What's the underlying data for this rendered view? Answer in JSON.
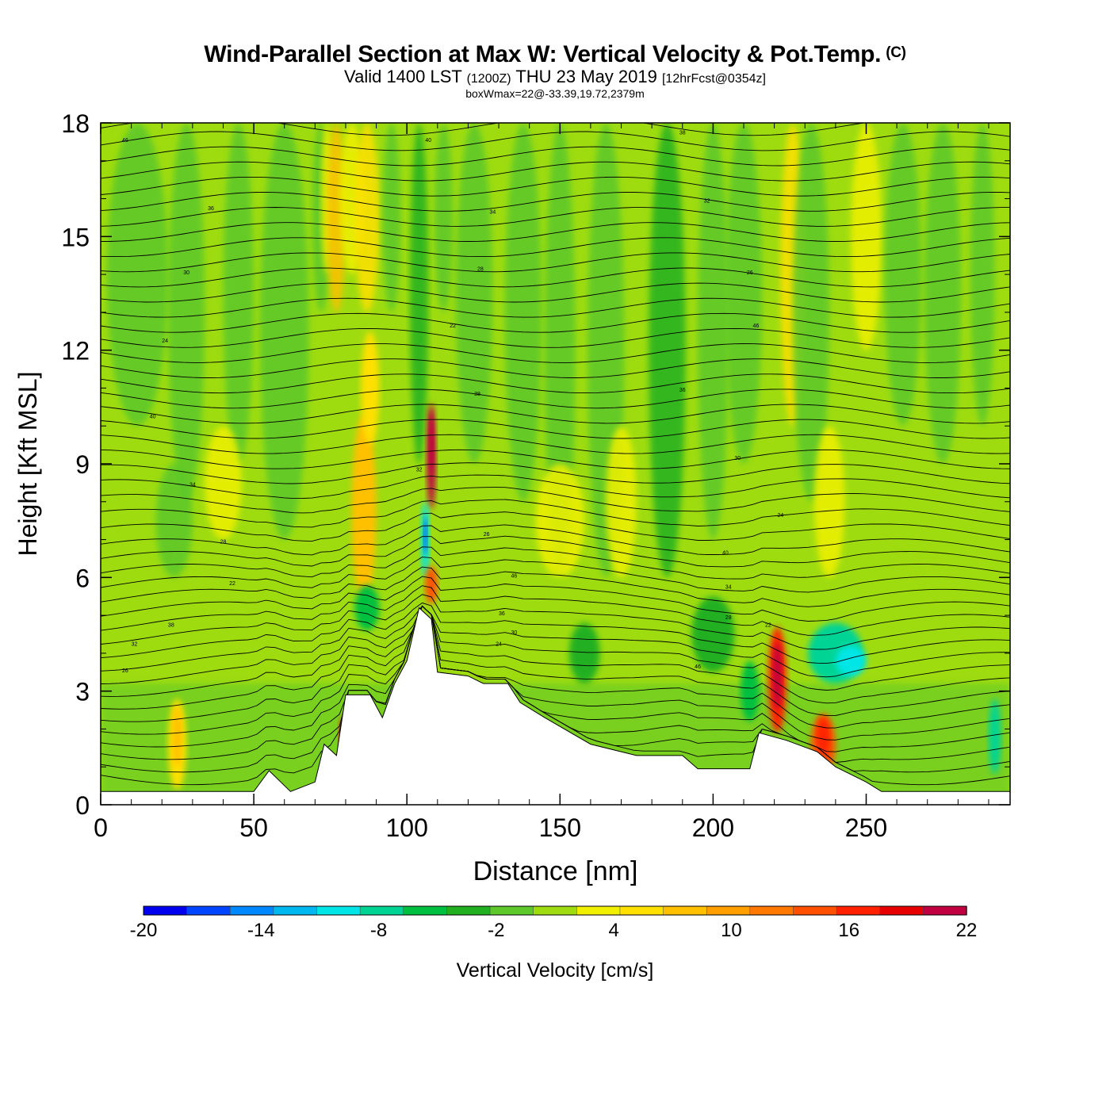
{
  "titles": {
    "main": "Wind-Parallel Section at Max W: Vertical Velocity & Pot.Temp.",
    "copyright": "(C)",
    "valid_prefix": "Valid 1400 LST",
    "valid_z": "(1200Z)",
    "valid_date": "THU 23 May 2019",
    "forecast": "[12hrFcst@0354z]",
    "boxwmax": "boxWmax=22@-33.39,19.72,2379m"
  },
  "chart_data": {
    "type": "heatmap",
    "xlabel": "Distance [nm]",
    "ylabel": "Height [Kft MSL]",
    "xlim": [
      0,
      297
    ],
    "ylim": [
      0,
      18
    ],
    "x_ticks": [
      "0",
      "50",
      "100",
      "150",
      "200",
      "250"
    ],
    "x_tick_values": [
      0,
      50,
      100,
      150,
      200,
      250
    ],
    "y_ticks": [
      "0",
      "3",
      "6",
      "9",
      "12",
      "15",
      "18"
    ],
    "y_tick_values": [
      0,
      3,
      6,
      9,
      12,
      15,
      18
    ],
    "colorbar": {
      "label": "Vertical Velocity [cm/s]",
      "min": -20,
      "max": 22,
      "step": 2,
      "tick_labels": [
        "-20",
        "-14",
        "-8",
        "-2",
        "4",
        "10",
        "16",
        "22"
      ],
      "tick_values": [
        -20,
        -14,
        -8,
        -2,
        4,
        10,
        16,
        22
      ],
      "colors": [
        "#0000ee",
        "#0044ff",
        "#0088ff",
        "#00b8f0",
        "#00e6e6",
        "#00d494",
        "#00c040",
        "#20b020",
        "#5cc82a",
        "#9edc10",
        "#f0f000",
        "#ffe000",
        "#ffc000",
        "#ffa000",
        "#ff7800",
        "#ff5000",
        "#ff2000",
        "#e60000",
        "#c00040"
      ]
    },
    "terrain_kft": [
      [
        0,
        0.35
      ],
      [
        50,
        0.35
      ],
      [
        55,
        0.9
      ],
      [
        62,
        0.35
      ],
      [
        70,
        0.6
      ],
      [
        73,
        1.6
      ],
      [
        77,
        1.3
      ],
      [
        80,
        2.9
      ],
      [
        88,
        2.9
      ],
      [
        92,
        2.3
      ],
      [
        96,
        3.2
      ],
      [
        100,
        3.8
      ],
      [
        104,
        5.2
      ],
      [
        108,
        4.9
      ],
      [
        110,
        3.5
      ],
      [
        120,
        3.4
      ],
      [
        125,
        3.2
      ],
      [
        133,
        3.2
      ],
      [
        137,
        2.7
      ],
      [
        145,
        2.3
      ],
      [
        160,
        1.6
      ],
      [
        175,
        1.3
      ],
      [
        190,
        1.3
      ],
      [
        195,
        0.95
      ],
      [
        212,
        0.95
      ],
      [
        215,
        1.9
      ],
      [
        224,
        1.7
      ],
      [
        234,
        1.4
      ],
      [
        240,
        1.0
      ],
      [
        250,
        0.6
      ],
      [
        255,
        0.35
      ],
      [
        297,
        0.35
      ]
    ],
    "theta_contour_labels": [
      "46",
      "40",
      "38",
      "36",
      "34",
      "32",
      "30",
      "28",
      "26",
      "24",
      "22"
    ],
    "max_w_cms": 22
  }
}
